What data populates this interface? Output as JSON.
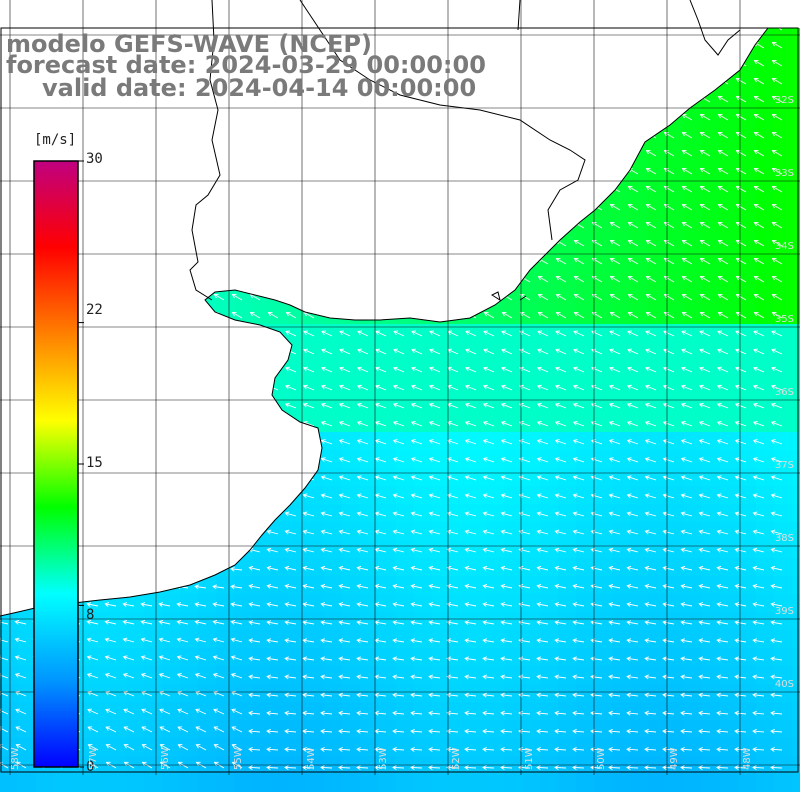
{
  "title": {
    "line1": "modelo GEFS-WAVE (NCEP)",
    "line2": "forecast date: 2024-03-29 00:00:00",
    "line3": "valid date: 2024-04-14 00:00:00"
  },
  "colorbar": {
    "unit": "[m/s]",
    "min": 0,
    "max": 30,
    "ticks": [
      "30",
      "22",
      "15",
      "8",
      "0"
    ],
    "tick_values": [
      30,
      22,
      15,
      8,
      0
    ],
    "stops": [
      "#0000ff",
      "#0096ff",
      "#00ffff",
      "#00ff00",
      "#ffff00",
      "#ff8000",
      "#ff0000",
      "#c00080"
    ]
  },
  "axes": {
    "lat_labels": [
      "32S",
      "33S",
      "34S",
      "35S",
      "36S",
      "37S",
      "38S",
      "39S",
      "40S"
    ],
    "lon_labels": [
      "58W",
      "57W",
      "56W",
      "55W",
      "54W",
      "53W",
      "52W",
      "51W",
      "50W",
      "49W",
      "48W"
    ]
  },
  "colors": {
    "land": "#ffffff",
    "coast": "#000000",
    "grid": "#111111",
    "arrows": "#ffffff",
    "title_text": "#7a7a7a"
  }
}
